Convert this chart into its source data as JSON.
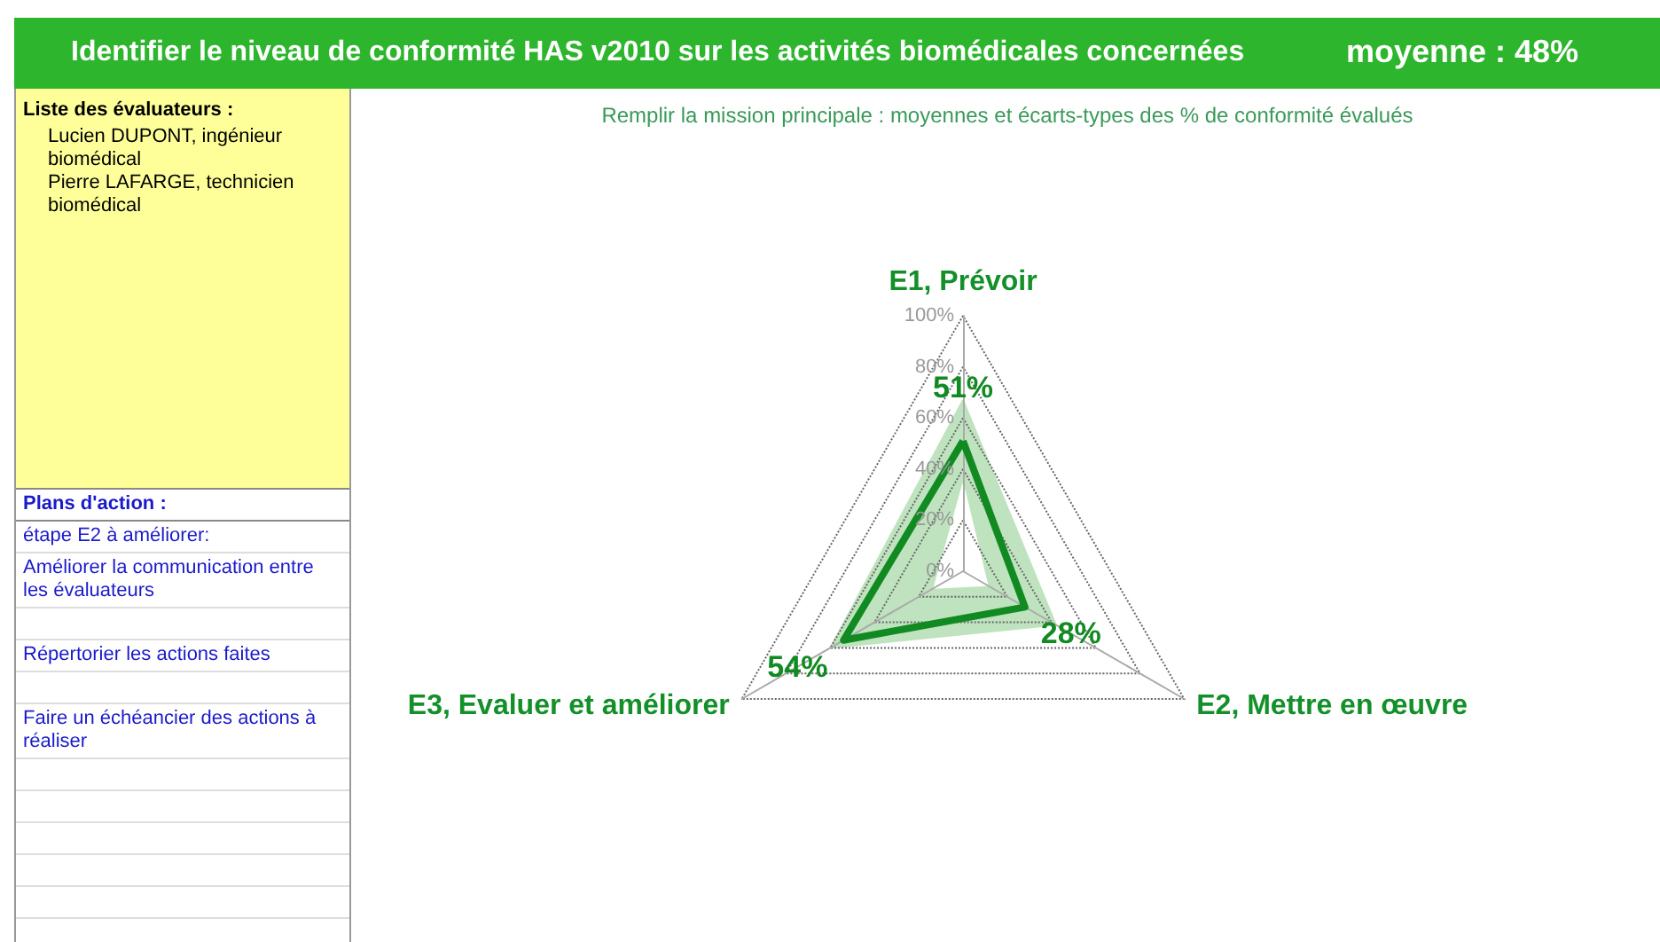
{
  "chart_data": {
    "type": "radar",
    "title": "Identifier le niveau de conformité HAS v2010 sur les activités biomédicales concernées",
    "subtitle": "Remplir la mission principale : moyennes et écarts-types des % de conformité évalués",
    "annotations": [
      "moyenne : 48%",
      "Liste des évaluateurs :",
      "Lucien DUPONT, ingénieur biomédical",
      "Pierre LAFARGE, technicien biomédical",
      "Plans d'action :",
      "étape E2 à améliorer:",
      "Améliorer la communication  entre les évaluateurs",
      "Répertorier les actions faites",
      "Faire un échéancier des actions à réaliser"
    ],
    "categories": [
      "E1, Prévoir",
      "E2, Mettre en œuvre",
      "E3, Evaluer et améliorer"
    ],
    "series": [
      {
        "color": "#118a22",
        "values": [
          51,
          28,
          54
        ],
        "value_labels": [
          "51%",
          "28%",
          "54%"
        ]
      },
      {
        "type": "area",
        "color": "#bfe3bf",
        "values": [
          67,
          42,
          60
        ]
      },
      {
        "type": "area",
        "color": "#ffffff",
        "values": [
          34,
          11,
          13
        ]
      }
    ],
    "ylim": [
      0,
      100
    ],
    "yticks": [
      {
        "value": 0,
        "label": "0%"
      },
      {
        "value": 20,
        "label": "20%"
      },
      {
        "value": 40,
        "label": "40%"
      },
      {
        "value": 60,
        "label": "60%"
      },
      {
        "value": 80,
        "label": "80%"
      },
      {
        "value": 100,
        "label": "100%"
      }
    ],
    "grid": true
  }
}
